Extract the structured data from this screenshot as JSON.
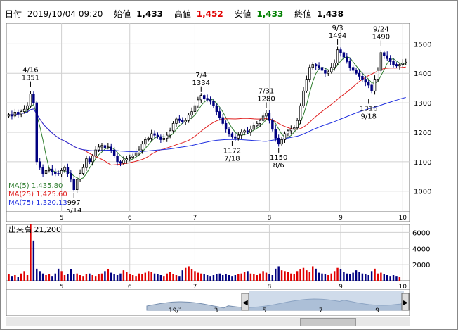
{
  "header": {
    "date_label": "日付",
    "date_value": "2019/10/04 09:20",
    "open_label": "始値",
    "open_value": "1,433",
    "high_label": "高値",
    "high_value": "1,452",
    "low_label": "安値",
    "low_value": "1,433",
    "close_label": "終値",
    "close_value": "1,438"
  },
  "legend": [
    {
      "name": "MA(5)",
      "value": "1,435.80",
      "color": "#2e7d2e"
    },
    {
      "name": "MA(25)",
      "value": "1,425.60",
      "color": "#e02020"
    },
    {
      "name": "MA(75)",
      "value": "1,320.13",
      "color": "#2030e0"
    }
  ],
  "volume_label": "出来高",
  "volume_value": "21,200",
  "colors": {
    "up": "#e00000",
    "down": "#000080",
    "candle_up_fill": "#ffffff",
    "grid": "#d0d0d0",
    "bg": "#ffffff"
  },
  "chart_data": {
    "type": "candlestick",
    "price_axis": {
      "ylim": [
        930,
        1570
      ],
      "ticks": [
        1000,
        1100,
        1200,
        1300,
        1400,
        1500
      ]
    },
    "month_ticks": [
      {
        "label": "5",
        "index": 17
      },
      {
        "label": "6",
        "index": 39
      },
      {
        "label": "7",
        "index": 60
      },
      {
        "label": "8",
        "index": 84
      },
      {
        "label": "9",
        "index": 107
      },
      {
        "label": "10",
        "index": 127
      }
    ],
    "annotations": [
      {
        "text": "4/16",
        "sub": "1351",
        "index": 7,
        "value": 1351,
        "pos": "above"
      },
      {
        "text": "7/4",
        "sub": "1334",
        "index": 62,
        "value": 1334,
        "pos": "above"
      },
      {
        "text": "7/31",
        "sub": "1280",
        "index": 83,
        "value": 1280,
        "pos": "above"
      },
      {
        "text": "9/3",
        "sub": "1494",
        "index": 106,
        "value": 1494,
        "pos": "above"
      },
      {
        "text": "9/24",
        "sub": "1490",
        "index": 120,
        "value": 1490,
        "pos": "above"
      },
      {
        "text": "997",
        "sub": "5/14",
        "index": 21,
        "value": 997,
        "pos": "below"
      },
      {
        "text": "1172",
        "sub": "7/18",
        "index": 72,
        "value": 1172,
        "pos": "below"
      },
      {
        "text": "1150",
        "sub": "8/6",
        "index": 87,
        "value": 1150,
        "pos": "below"
      },
      {
        "text": "1316",
        "sub": "9/18",
        "index": 116,
        "value": 1316,
        "pos": "below"
      }
    ],
    "closes": [
      1260,
      1255,
      1268,
      1262,
      1270,
      1278,
      1290,
      1330,
      1300,
      1100,
      1080,
      1060,
      1070,
      1075,
      1065,
      1060,
      1058,
      1070,
      1080,
      1060,
      1040,
      1005,
      1040,
      1060,
      1080,
      1110,
      1100,
      1120,
      1140,
      1150,
      1155,
      1148,
      1150,
      1140,
      1120,
      1100,
      1095,
      1105,
      1110,
      1115,
      1120,
      1130,
      1140,
      1160,
      1175,
      1180,
      1195,
      1190,
      1185,
      1175,
      1180,
      1190,
      1205,
      1230,
      1245,
      1240,
      1235,
      1240,
      1258,
      1270,
      1290,
      1310,
      1325,
      1315,
      1310,
      1305,
      1290,
      1270,
      1250,
      1230,
      1210,
      1195,
      1185,
      1180,
      1190,
      1200,
      1205,
      1200,
      1210,
      1222,
      1230,
      1240,
      1255,
      1265,
      1240,
      1210,
      1180,
      1160,
      1175,
      1195,
      1205,
      1210,
      1215,
      1240,
      1290,
      1340,
      1380,
      1420,
      1430,
      1425,
      1420,
      1410,
      1400,
      1405,
      1420,
      1435,
      1480,
      1470,
      1455,
      1440,
      1420,
      1410,
      1400,
      1390,
      1380,
      1370,
      1360,
      1340,
      1380,
      1410,
      1470,
      1460,
      1450,
      1440,
      1430,
      1425,
      1430,
      1435,
      1438
    ],
    "ma5": {
      "name": "MA(5)",
      "value": 1435.8
    },
    "ma25": {
      "name": "MA(25)",
      "value": 1425.6
    },
    "ma75": {
      "name": "MA(75)",
      "value": 1320.13
    },
    "volume_axis": {
      "ylim": [
        0,
        7000
      ],
      "ticks": [
        2000,
        4000,
        6000
      ]
    },
    "volumes": [
      800,
      600,
      700,
      500,
      900,
      1200,
      700,
      7000,
      5000,
      1500,
      1200,
      900,
      700,
      800,
      600,
      900,
      1500,
      1200,
      700,
      800,
      1400,
      800,
      900,
      700,
      600,
      800,
      900,
      700,
      600,
      800,
      900,
      1200,
      1400,
      1000,
      800,
      700,
      900,
      1300,
      1100,
      800,
      700,
      600,
      900,
      800,
      1000,
      1200,
      1100,
      900,
      800,
      700,
      600,
      900,
      1100,
      800,
      700,
      600,
      1300,
      1600,
      1800,
      1400,
      1200,
      1000,
      900,
      800,
      700,
      600,
      700,
      800,
      900,
      700,
      800,
      700,
      600,
      700,
      800,
      900,
      1100,
      1200,
      900,
      800,
      700,
      900,
      1200,
      1000,
      800,
      700,
      1500,
      1800,
      1300,
      1200,
      1100,
      900,
      800,
      1200,
      1400,
      1600,
      1300,
      1100,
      1800,
      1500,
      1000,
      900,
      800,
      700,
      900,
      1200,
      1600,
      1400,
      1100,
      900,
      800,
      1000,
      1300,
      1100,
      900,
      800,
      700,
      1200,
      1500,
      900,
      1000,
      800,
      700,
      600,
      700,
      600,
      500
    ]
  },
  "navigator": {
    "labels": [
      {
        "text": "19/1",
        "pos": 0.42
      },
      {
        "text": "3",
        "pos": 0.52
      },
      {
        "text": "5",
        "pos": 0.64
      },
      {
        "text": "7",
        "pos": 0.78
      },
      {
        "text": "9",
        "pos": 0.92
      }
    ],
    "left_handle_icon": "chevron-left-icon",
    "right_handle_icon": "chevron-right-icon"
  }
}
